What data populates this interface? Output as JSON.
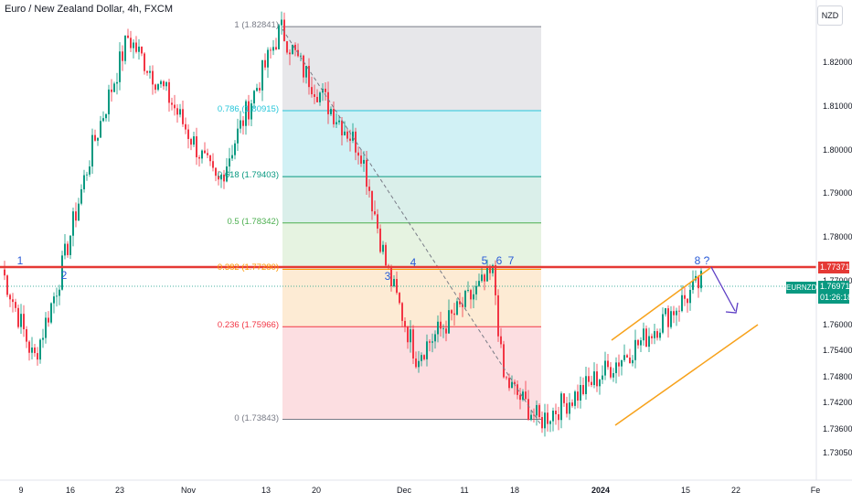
{
  "title": "Euro / New Zealand Dollar, 4h, FXCM",
  "currency": "NZD",
  "symbol": "EURNZD",
  "last_price": "1.76971",
  "countdown": "01:26:18",
  "red_level": "1.77371",
  "colors": {
    "up": "#089981",
    "down": "#f23645",
    "red_line": "#e53935",
    "channel": "#f7a21b",
    "arrow": "#5b3cc4",
    "waves": "#2a5bd7"
  },
  "y_axis": {
    "min": 1.7245,
    "max": 1.8345,
    "ticks": [
      "1.82000",
      "1.81000",
      "1.80000",
      "1.79000",
      "1.78000",
      "1.77000",
      "1.76000",
      "1.75400",
      "1.74800",
      "1.74200",
      "1.73600",
      "1.73050"
    ],
    "tick_values": [
      1.82,
      1.81,
      1.8,
      1.79,
      1.78,
      1.77,
      1.76,
      1.754,
      1.748,
      1.742,
      1.736,
      1.7305
    ]
  },
  "x_axis": {
    "ticks": [
      "9",
      "16",
      "23",
      "Nov",
      "13",
      "20",
      "Dec",
      "11",
      "18",
      "2024",
      "15",
      "22",
      "Fe"
    ]
  },
  "fib_levels": [
    {
      "ratio": "1",
      "price": 1.82841,
      "label": "1 (1.82841)",
      "color": "#787b86",
      "fill": "#e3e3e6"
    },
    {
      "ratio": "0.786",
      "price": 1.80915,
      "label": "0.786 (1.80915)",
      "color": "#26c6da",
      "fill": "#c9eef3"
    },
    {
      "ratio": "0.618",
      "price": 1.79403,
      "label": "0.618 (1.79403)",
      "color": "#089981",
      "fill": "#d3ece6"
    },
    {
      "ratio": "0.5",
      "price": 1.78342,
      "label": "0.5 (1.78342)",
      "color": "#4caf50",
      "fill": "#e2f1dc"
    },
    {
      "ratio": "0.382",
      "price": 1.7728,
      "label": "0.382 (1.77280)",
      "color": "#ff9800",
      "fill": "#fde8cc"
    },
    {
      "ratio": "0.236",
      "price": 1.75966,
      "label": "0.236 (1.75966)",
      "color": "#f23645",
      "fill": "#fbd8dc"
    },
    {
      "ratio": "0",
      "price": 1.73843,
      "label": "0 (1.73843)",
      "color": "#787b86",
      "fill": null
    }
  ],
  "wave_labels": [
    "1",
    "2",
    "3",
    "4",
    "5",
    "6",
    "7",
    "8",
    "?"
  ],
  "chart_data": {
    "type": "candlestick",
    "series_name": "EURNZD 4h",
    "key_closes": [
      {
        "date": "Oct 5",
        "close": 1.774
      },
      {
        "date": "Oct 8",
        "close": 1.752
      },
      {
        "date": "Oct 12",
        "close": 1.77
      },
      {
        "date": "Oct 18",
        "close": 1.8
      },
      {
        "date": "Oct 24",
        "close": 1.826
      },
      {
        "date": "Oct 31",
        "close": 1.812
      },
      {
        "date": "Nov 7",
        "close": 1.792
      },
      {
        "date": "Nov 10",
        "close": 1.805
      },
      {
        "date": "Nov 15",
        "close": 1.828
      },
      {
        "date": "Nov 20",
        "close": 1.818
      },
      {
        "date": "Nov 27",
        "close": 1.8
      },
      {
        "date": "Nov 29",
        "close": 1.773
      },
      {
        "date": "Dec 4",
        "close": 1.753
      },
      {
        "date": "Dec 13",
        "close": 1.772
      },
      {
        "date": "Dec 15",
        "close": 1.748
      },
      {
        "date": "Dec 21",
        "close": 1.738
      },
      {
        "date": "Jan 2",
        "close": 1.744
      },
      {
        "date": "Jan 10",
        "close": 1.756
      },
      {
        "date": "Jan 16",
        "close": 1.77
      }
    ],
    "ylim": [
      1.7245,
      1.8345
    ],
    "annotations": [
      "Fibonacci retracement 1.82841 -> 1.73843",
      "Horizontal level 1.77371",
      "Ascending channel",
      "Projected down arrow"
    ]
  }
}
